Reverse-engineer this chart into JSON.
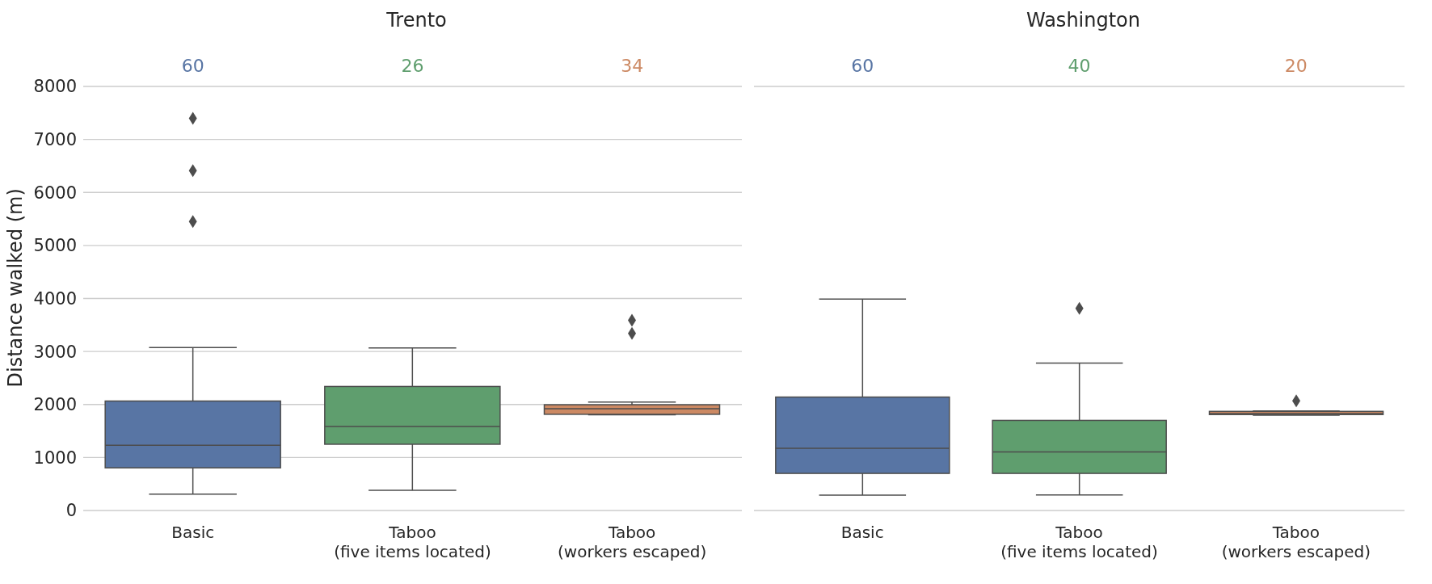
{
  "chart_data": [
    {
      "type": "box",
      "title": "Trento",
      "ylabel": "Distance walked (m)",
      "categories": [
        "Basic",
        "Taboo\n(five items located)",
        "Taboo\n(workers escaped)"
      ],
      "colors": [
        "#5875a4",
        "#5f9e6e",
        "#cc8963"
      ],
      "boxes": [
        {
          "low": 310,
          "q1": 805,
          "median": 1230,
          "q3": 2065,
          "high": 3075,
          "outliers": [
            5450,
            6410,
            7400
          ]
        },
        {
          "low": 380,
          "q1": 1250,
          "median": 1585,
          "q3": 2340,
          "high": 3065
        },
        {
          "low": 1805,
          "q1": 1815,
          "median": 1920,
          "q3": 1995,
          "high": 2045,
          "outliers": [
            3340,
            3590
          ]
        }
      ],
      "annotations": [
        "60",
        "26",
        "34"
      ],
      "ylim": [
        0,
        8000
      ],
      "yticks": [
        0,
        1000,
        2000,
        3000,
        4000,
        5000,
        6000,
        7000,
        8000
      ],
      "grid": "y"
    },
    {
      "type": "box",
      "title": "Washington",
      "categories": [
        "Basic",
        "Taboo\n(five items located)",
        "Taboo\n(workers escaped)"
      ],
      "colors": [
        "#5875a4",
        "#5f9e6e",
        "#cc8963"
      ],
      "boxes": [
        {
          "low": 290,
          "q1": 700,
          "median": 1175,
          "q3": 2140,
          "high": 3990
        },
        {
          "low": 295,
          "q1": 700,
          "median": 1105,
          "q3": 1700,
          "high": 2780,
          "outliers": [
            3815
          ]
        },
        {
          "low": 1800,
          "q1": 1810,
          "median": 1830,
          "q3": 1870,
          "high": 1880,
          "outliers": [
            2070
          ]
        }
      ],
      "annotations": [
        "60",
        "40",
        "20"
      ],
      "ylim": [
        0,
        8000
      ],
      "yticks": [
        0,
        1000,
        2000,
        3000,
        4000,
        5000,
        6000,
        7000,
        8000
      ],
      "grid": "y",
      "tick_labels": "x"
    }
  ]
}
